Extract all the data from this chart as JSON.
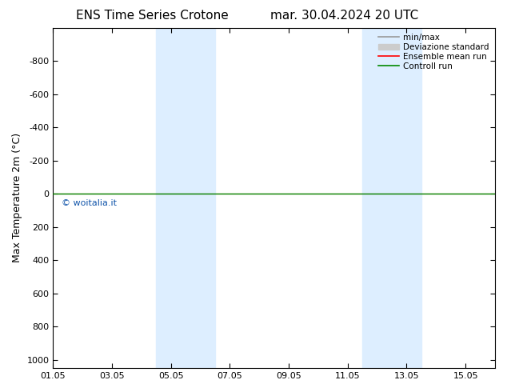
{
  "title": "ENS Time Series Crotone",
  "title2": "mar. 30.04.2024 20 UTC",
  "ylabel": "Max Temperature 2m (°C)",
  "ylim_bottom": -1000,
  "ylim_top": 1050,
  "yticks": [
    -800,
    -600,
    -400,
    -200,
    0,
    200,
    400,
    600,
    800,
    1000
  ],
  "xtick_labels": [
    "01.05",
    "03.05",
    "05.05",
    "07.05",
    "09.05",
    "11.05",
    "13.05",
    "15.05"
  ],
  "xtick_positions": [
    0,
    2,
    4,
    6,
    8,
    10,
    12,
    14
  ],
  "xlim": [
    0,
    15
  ],
  "shaded_bands": [
    [
      3.5,
      4.5
    ],
    [
      4.5,
      5.5
    ],
    [
      10.5,
      11.5
    ],
    [
      11.5,
      12.5
    ]
  ],
  "band_color": "#ddeeff",
  "control_run_y": 0,
  "ensemble_mean_y": 0,
  "legend_labels": [
    "min/max",
    "Deviazione standard",
    "Ensemble mean run",
    "Controll run"
  ],
  "minmax_color": "#999999",
  "devstd_color": "#cccccc",
  "ensemble_color": "#ff0000",
  "control_color": "#008800",
  "watermark": "© woitalia.it",
  "watermark_color": "#1155aa",
  "background_color": "#ffffff"
}
